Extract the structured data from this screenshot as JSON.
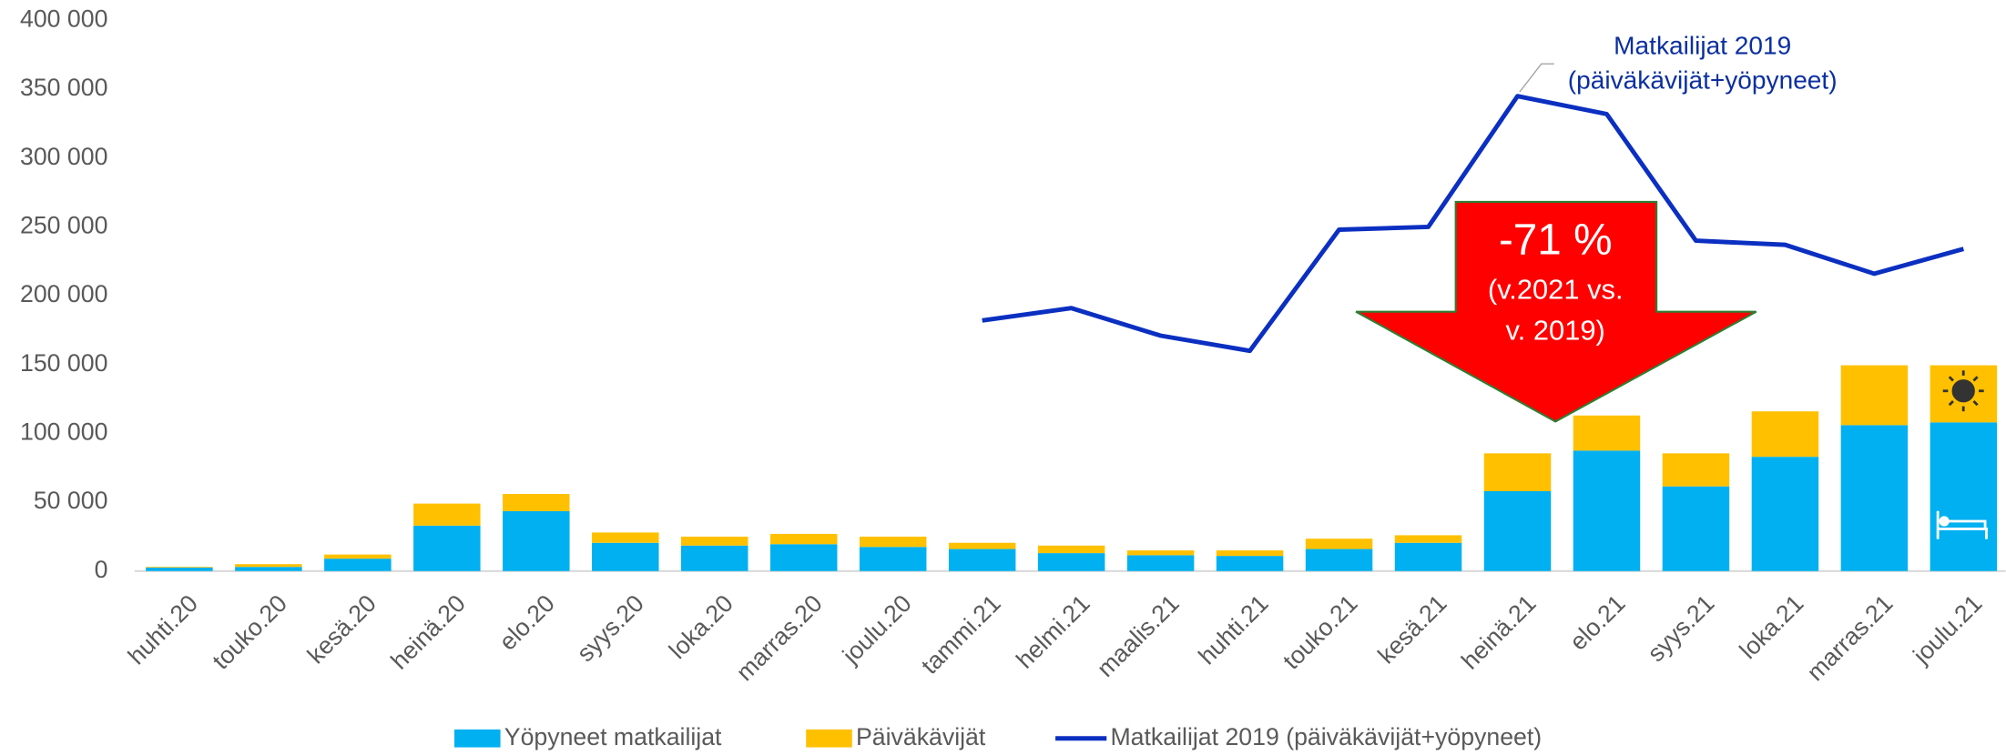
{
  "chart_data": {
    "type": "bar",
    "stacked": true,
    "categories": [
      "huhti.20",
      "touko.20",
      "kesä.20",
      "heinä.20",
      "elo.20",
      "syys.20",
      "loka.20",
      "marras.20",
      "joulu.20",
      "tammi.21",
      "helmi.21",
      "maalis.21",
      "huhti.21",
      "touko.21",
      "kesä.21",
      "heinä.21",
      "elo.21",
      "syys.21",
      "loka.21",
      "marras.21",
      "joulu.21"
    ],
    "series": [
      {
        "name": "Yöpyneet matkailijat",
        "color": "#00b0f0",
        "type": "bar",
        "values": [
          2500,
          3000,
          9000,
          33000,
          43500,
          20500,
          18500,
          19500,
          17500,
          16000,
          13000,
          11500,
          11000,
          16000,
          20500,
          58000,
          87500,
          61500,
          83000,
          106000,
          108000
        ]
      },
      {
        "name": "Päiväkävijät",
        "color": "#ffc000",
        "type": "bar",
        "values": [
          500,
          2000,
          3000,
          16000,
          12500,
          7500,
          6500,
          7500,
          7500,
          4500,
          5500,
          3500,
          4000,
          7500,
          5500,
          27500,
          25500,
          24000,
          33000,
          43500,
          41500
        ]
      },
      {
        "name": "Matkailijat 2019 (päiväkävijät+yöpyneet)",
        "color": "#0b2fc1",
        "type": "line",
        "values": [
          null,
          null,
          null,
          null,
          null,
          null,
          null,
          null,
          null,
          182000,
          191000,
          171000,
          160000,
          248000,
          250000,
          345000,
          332000,
          240000,
          237000,
          216000,
          234000
        ]
      }
    ],
    "ylim": [
      0,
      400000
    ],
    "yticks": [
      {
        "value": 0,
        "label": "0"
      },
      {
        "value": 50000,
        "label": "50 000"
      },
      {
        "value": 100000,
        "label": "100 000"
      },
      {
        "value": 150000,
        "label": "150 000"
      },
      {
        "value": 200000,
        "label": "200 000"
      },
      {
        "value": 250000,
        "label": "250 000"
      },
      {
        "value": 300000,
        "label": "300 000"
      },
      {
        "value": 350000,
        "label": "350 000"
      },
      {
        "value": 400000,
        "label": "400 000"
      }
    ],
    "grid": false,
    "legend": "bottom",
    "annotations": {
      "line_label": [
        "Matkailijat 2019",
        "(päiväkävijät+yöpyneet)"
      ],
      "arrow": [
        "-71 %",
        "(v.2021 vs.",
        "v. 2019)"
      ]
    }
  }
}
